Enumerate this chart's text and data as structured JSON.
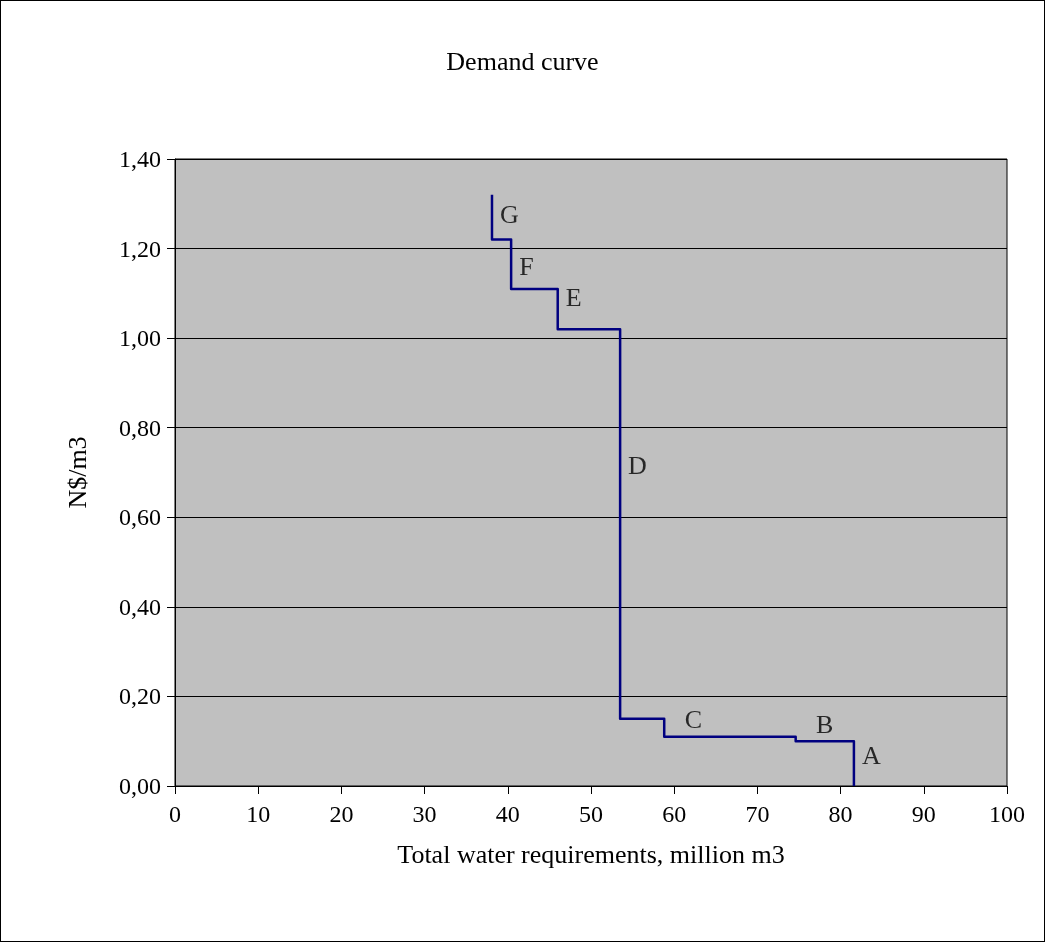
{
  "chart_data": {
    "type": "step",
    "title": "Demand curve",
    "xlabel": "Total water requirements, million m3",
    "ylabel": "N$/m3",
    "x": [
      38.1,
      40.4,
      46.0,
      53.5,
      58.8,
      74.6,
      81.6,
      81.6
    ],
    "values": [
      1.32,
      1.22,
      1.11,
      1.02,
      0.15,
      0.11,
      0.1,
      0
    ],
    "color": "#000080",
    "marker": "none",
    "grid": "y",
    "xlim": [
      0,
      100
    ],
    "xticks": [
      0,
      10,
      20,
      30,
      40,
      50,
      60,
      70,
      80,
      90,
      100
    ],
    "ylim": [
      0,
      1.4
    ],
    "yticks": [
      {
        "value": 0,
        "label": "0,00"
      },
      {
        "value": 0.2,
        "label": "0,20"
      },
      {
        "value": 0.4,
        "label": "0,40"
      },
      {
        "value": 0.6,
        "label": "0,60"
      },
      {
        "value": 0.8,
        "label": "0,80"
      },
      {
        "value": 1.0,
        "label": "1,00"
      },
      {
        "value": 1.2,
        "label": "1,20"
      },
      {
        "value": 1.4,
        "label": "1,40"
      }
    ],
    "annotations": [
      {
        "text": "G",
        "x": 38.1,
        "y": 1.275
      },
      {
        "text": "F",
        "x": 40.4,
        "y": 1.16
      },
      {
        "text": "E",
        "x": 46.0,
        "y": 1.09
      },
      {
        "text": "D",
        "x": 53.5,
        "y": 0.715
      },
      {
        "text": "C",
        "x": 62.3,
        "y": 0.11
      },
      {
        "text": "B",
        "x": 78.1,
        "y": 0.1
      },
      {
        "text": "A",
        "x": 81.6,
        "y": 0.067
      }
    ]
  }
}
